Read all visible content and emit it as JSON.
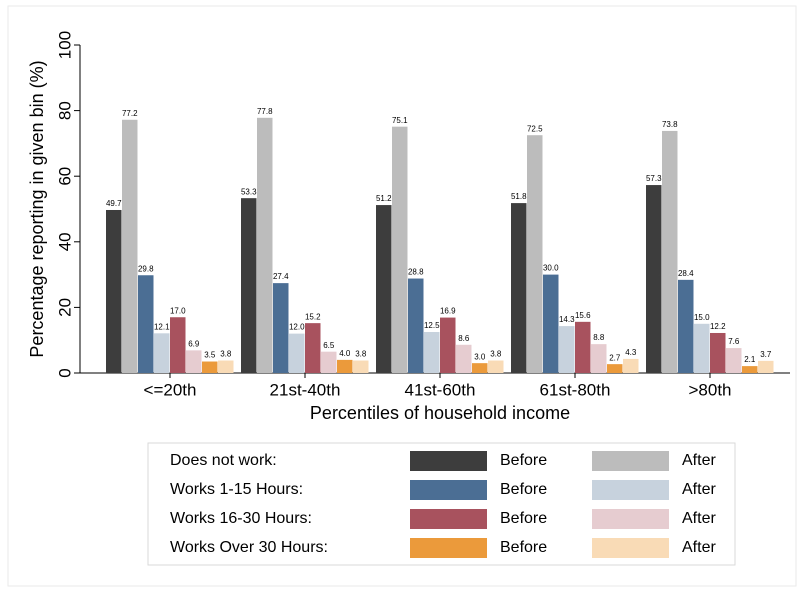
{
  "chart_data": {
    "type": "bar",
    "y_label": "Percentage reporting in given bin (%)",
    "x_label": "Percentiles of household income",
    "categories": [
      "<=20th",
      "21st-40th",
      "41st-60th",
      "61st-80th",
      ">80th"
    ],
    "ylim": [
      0,
      100
    ],
    "yticks": [
      0,
      20,
      40,
      60,
      80,
      100
    ],
    "groups": [
      {
        "label": "Does not work:",
        "series": [
          {
            "name": "Before",
            "color": "#3d3d3d",
            "values": [
              49.7,
              53.3,
              51.2,
              51.8,
              57.3
            ],
            "value_labels": [
              "49.7",
              "53.3",
              "51.2",
              "51.8",
              "57.3"
            ]
          },
          {
            "name": "After",
            "color": "#bcbcbc",
            "values": [
              77.2,
              77.8,
              75.1,
              72.5,
              73.8
            ],
            "value_labels": [
              "77.2",
              "77.8",
              "75.1",
              "72.5",
              "73.8"
            ]
          }
        ]
      },
      {
        "label": "Works 1-15 Hours:",
        "series": [
          {
            "name": "Before",
            "color": "#4b6e94",
            "values": [
              29.8,
              27.4,
              28.8,
              30,
              28.4
            ],
            "value_labels": [
              "29.8",
              "27.4",
              "28.8",
              "30.0",
              "28.4"
            ]
          },
          {
            "name": "After",
            "color": "#c7d2dd",
            "values": [
              12.1,
              12,
              12.5,
              14.3,
              15
            ],
            "value_labels": [
              "12.1",
              "12.0",
              "12.5",
              "14.3",
              "15.0"
            ]
          }
        ]
      },
      {
        "label": "Works 16-30 Hours:",
        "series": [
          {
            "name": "Before",
            "color": "#a8525e",
            "values": [
              17,
              15.2,
              16.9,
              15.6,
              12.2
            ],
            "value_labels": [
              "17.0",
              "15.2",
              "16.9",
              "15.6",
              "12.2"
            ]
          },
          {
            "name": "After",
            "color": "#e6ccd0",
            "values": [
              6.9,
              6.5,
              8.6,
              8.8,
              7.6
            ],
            "value_labels": [
              "6.9",
              "6.5",
              "8.6",
              "8.8",
              "7.6"
            ]
          }
        ]
      },
      {
        "label": "Works Over 30 Hours:",
        "series": [
          {
            "name": "Before",
            "color": "#eb9a3b",
            "values": [
              3.5,
              4,
              3,
              2.7,
              2.1
            ],
            "value_labels": [
              "3.5",
              "4.0",
              "3.0",
              "2.7",
              "2.1"
            ]
          },
          {
            "name": "After",
            "color": "#f9dbb6",
            "values": [
              3.8,
              3.8,
              3.8,
              4.3,
              3.7
            ],
            "value_labels": [
              "3.8",
              "3.8",
              "3.8",
              "4.3",
              "3.7"
            ]
          }
        ]
      }
    ]
  }
}
